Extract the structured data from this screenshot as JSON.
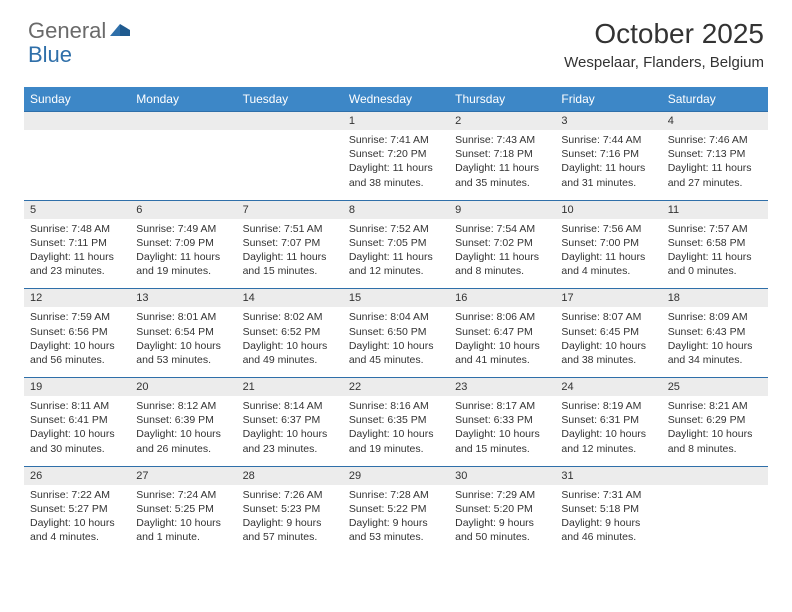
{
  "brand": {
    "part1": "General",
    "part2": "Blue"
  },
  "title": "October 2025",
  "location": "Wespelaar, Flanders, Belgium",
  "colors": {
    "header_bg": "#3d87c7",
    "daynum_bg": "#ececec",
    "border": "#2f6fa9",
    "text": "#333333",
    "logo_gray": "#6a6a6a",
    "logo_blue": "#2f6fa9"
  },
  "day_names": [
    "Sunday",
    "Monday",
    "Tuesday",
    "Wednesday",
    "Thursday",
    "Friday",
    "Saturday"
  ],
  "weeks": [
    {
      "nums": [
        "",
        "",
        "",
        "1",
        "2",
        "3",
        "4"
      ],
      "cells": [
        {
          "sunrise": "",
          "sunset": "",
          "daylight": ""
        },
        {
          "sunrise": "",
          "sunset": "",
          "daylight": ""
        },
        {
          "sunrise": "",
          "sunset": "",
          "daylight": ""
        },
        {
          "sunrise": "Sunrise: 7:41 AM",
          "sunset": "Sunset: 7:20 PM",
          "daylight": "Daylight: 11 hours and 38 minutes."
        },
        {
          "sunrise": "Sunrise: 7:43 AM",
          "sunset": "Sunset: 7:18 PM",
          "daylight": "Daylight: 11 hours and 35 minutes."
        },
        {
          "sunrise": "Sunrise: 7:44 AM",
          "sunset": "Sunset: 7:16 PM",
          "daylight": "Daylight: 11 hours and 31 minutes."
        },
        {
          "sunrise": "Sunrise: 7:46 AM",
          "sunset": "Sunset: 7:13 PM",
          "daylight": "Daylight: 11 hours and 27 minutes."
        }
      ]
    },
    {
      "nums": [
        "5",
        "6",
        "7",
        "8",
        "9",
        "10",
        "11"
      ],
      "cells": [
        {
          "sunrise": "Sunrise: 7:48 AM",
          "sunset": "Sunset: 7:11 PM",
          "daylight": "Daylight: 11 hours and 23 minutes."
        },
        {
          "sunrise": "Sunrise: 7:49 AM",
          "sunset": "Sunset: 7:09 PM",
          "daylight": "Daylight: 11 hours and 19 minutes."
        },
        {
          "sunrise": "Sunrise: 7:51 AM",
          "sunset": "Sunset: 7:07 PM",
          "daylight": "Daylight: 11 hours and 15 minutes."
        },
        {
          "sunrise": "Sunrise: 7:52 AM",
          "sunset": "Sunset: 7:05 PM",
          "daylight": "Daylight: 11 hours and 12 minutes."
        },
        {
          "sunrise": "Sunrise: 7:54 AM",
          "sunset": "Sunset: 7:02 PM",
          "daylight": "Daylight: 11 hours and 8 minutes."
        },
        {
          "sunrise": "Sunrise: 7:56 AM",
          "sunset": "Sunset: 7:00 PM",
          "daylight": "Daylight: 11 hours and 4 minutes."
        },
        {
          "sunrise": "Sunrise: 7:57 AM",
          "sunset": "Sunset: 6:58 PM",
          "daylight": "Daylight: 11 hours and 0 minutes."
        }
      ]
    },
    {
      "nums": [
        "12",
        "13",
        "14",
        "15",
        "16",
        "17",
        "18"
      ],
      "cells": [
        {
          "sunrise": "Sunrise: 7:59 AM",
          "sunset": "Sunset: 6:56 PM",
          "daylight": "Daylight: 10 hours and 56 minutes."
        },
        {
          "sunrise": "Sunrise: 8:01 AM",
          "sunset": "Sunset: 6:54 PM",
          "daylight": "Daylight: 10 hours and 53 minutes."
        },
        {
          "sunrise": "Sunrise: 8:02 AM",
          "sunset": "Sunset: 6:52 PM",
          "daylight": "Daylight: 10 hours and 49 minutes."
        },
        {
          "sunrise": "Sunrise: 8:04 AM",
          "sunset": "Sunset: 6:50 PM",
          "daylight": "Daylight: 10 hours and 45 minutes."
        },
        {
          "sunrise": "Sunrise: 8:06 AM",
          "sunset": "Sunset: 6:47 PM",
          "daylight": "Daylight: 10 hours and 41 minutes."
        },
        {
          "sunrise": "Sunrise: 8:07 AM",
          "sunset": "Sunset: 6:45 PM",
          "daylight": "Daylight: 10 hours and 38 minutes."
        },
        {
          "sunrise": "Sunrise: 8:09 AM",
          "sunset": "Sunset: 6:43 PM",
          "daylight": "Daylight: 10 hours and 34 minutes."
        }
      ]
    },
    {
      "nums": [
        "19",
        "20",
        "21",
        "22",
        "23",
        "24",
        "25"
      ],
      "cells": [
        {
          "sunrise": "Sunrise: 8:11 AM",
          "sunset": "Sunset: 6:41 PM",
          "daylight": "Daylight: 10 hours and 30 minutes."
        },
        {
          "sunrise": "Sunrise: 8:12 AM",
          "sunset": "Sunset: 6:39 PM",
          "daylight": "Daylight: 10 hours and 26 minutes."
        },
        {
          "sunrise": "Sunrise: 8:14 AM",
          "sunset": "Sunset: 6:37 PM",
          "daylight": "Daylight: 10 hours and 23 minutes."
        },
        {
          "sunrise": "Sunrise: 8:16 AM",
          "sunset": "Sunset: 6:35 PM",
          "daylight": "Daylight: 10 hours and 19 minutes."
        },
        {
          "sunrise": "Sunrise: 8:17 AM",
          "sunset": "Sunset: 6:33 PM",
          "daylight": "Daylight: 10 hours and 15 minutes."
        },
        {
          "sunrise": "Sunrise: 8:19 AM",
          "sunset": "Sunset: 6:31 PM",
          "daylight": "Daylight: 10 hours and 12 minutes."
        },
        {
          "sunrise": "Sunrise: 8:21 AM",
          "sunset": "Sunset: 6:29 PM",
          "daylight": "Daylight: 10 hours and 8 minutes."
        }
      ]
    },
    {
      "nums": [
        "26",
        "27",
        "28",
        "29",
        "30",
        "31",
        ""
      ],
      "cells": [
        {
          "sunrise": "Sunrise: 7:22 AM",
          "sunset": "Sunset: 5:27 PM",
          "daylight": "Daylight: 10 hours and 4 minutes."
        },
        {
          "sunrise": "Sunrise: 7:24 AM",
          "sunset": "Sunset: 5:25 PM",
          "daylight": "Daylight: 10 hours and 1 minute."
        },
        {
          "sunrise": "Sunrise: 7:26 AM",
          "sunset": "Sunset: 5:23 PM",
          "daylight": "Daylight: 9 hours and 57 minutes."
        },
        {
          "sunrise": "Sunrise: 7:28 AM",
          "sunset": "Sunset: 5:22 PM",
          "daylight": "Daylight: 9 hours and 53 minutes."
        },
        {
          "sunrise": "Sunrise: 7:29 AM",
          "sunset": "Sunset: 5:20 PM",
          "daylight": "Daylight: 9 hours and 50 minutes."
        },
        {
          "sunrise": "Sunrise: 7:31 AM",
          "sunset": "Sunset: 5:18 PM",
          "daylight": "Daylight: 9 hours and 46 minutes."
        },
        {
          "sunrise": "",
          "sunset": "",
          "daylight": ""
        }
      ]
    }
  ]
}
